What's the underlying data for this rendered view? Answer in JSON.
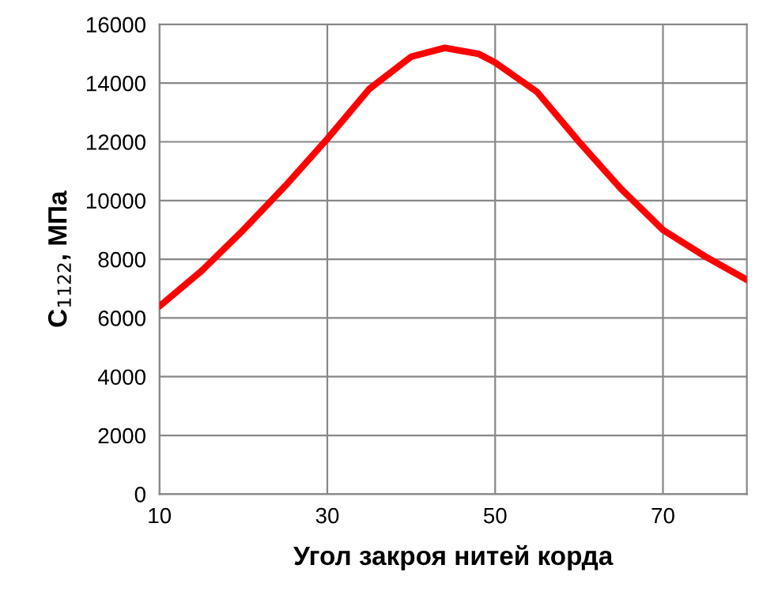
{
  "chart_data": {
    "type": "line",
    "xlabel": "Угол закроя нитей корда",
    "ylabel": "C$_{1122}$, МПа",
    "series": [
      {
        "color": "#ff0000",
        "x": [
          10,
          15,
          20,
          25,
          30,
          35,
          40,
          44,
          48,
          50,
          55,
          60,
          65,
          70,
          75,
          80
        ],
        "values": [
          6400,
          7600,
          9000,
          10500,
          12100,
          13800,
          14900,
          15200,
          15000,
          14700,
          13700,
          12000,
          10400,
          9000,
          8100,
          7300
        ]
      }
    ],
    "xlim": [
      10,
      80
    ],
    "xticks": [
      10,
      30,
      50,
      70
    ],
    "ylim": [
      0,
      16000
    ],
    "yticks": [
      0,
      2000,
      4000,
      6000,
      8000,
      10000,
      12000,
      14000,
      16000
    ],
    "grid": true,
    "marker": "none",
    "line_style": "solid"
  }
}
